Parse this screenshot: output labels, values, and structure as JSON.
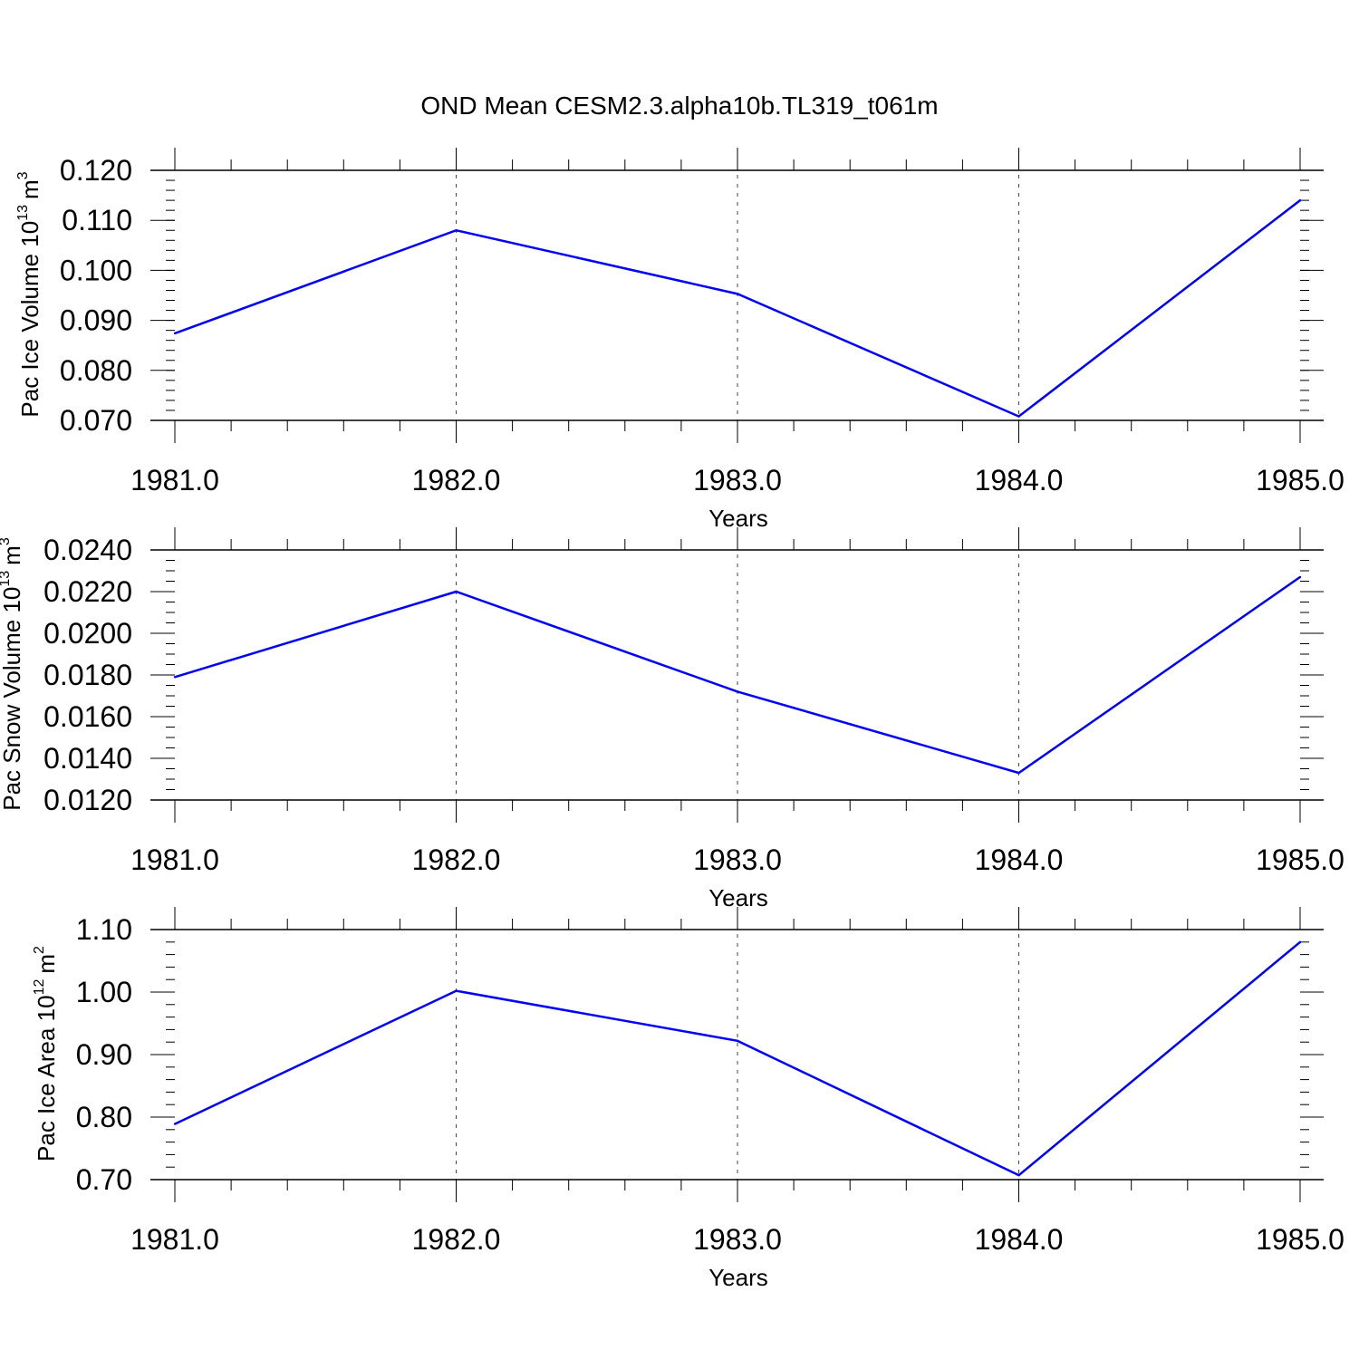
{
  "figure_title": "OND Mean CESM2.3.alpha10b.TL319_t061m",
  "chart_data": [
    {
      "type": "line",
      "title": "",
      "xlabel": "Years",
      "ylabel": "Pac Ice Volume 10",
      "ylabel_exp": "13",
      "ylabel_unit": "m",
      "ylabel_unit_exp": "3",
      "x": [
        1981,
        1982,
        1983,
        1984,
        1985
      ],
      "x_tick_labels": [
        "1981.0",
        "1982.0",
        "1983.0",
        "1984.0",
        "1985.0"
      ],
      "y_ticks": [
        0.07,
        0.08,
        0.09,
        0.1,
        0.11,
        0.12
      ],
      "y_tick_labels": [
        "0.070",
        "0.080",
        "0.090",
        "0.100",
        "0.110",
        "0.120"
      ],
      "xlim": [
        1981,
        1985
      ],
      "ylim": [
        0.07,
        0.12
      ],
      "y_minor_step": 0.002,
      "series": [
        {
          "values": [
            0.0874,
            0.108,
            0.0953,
            0.0708,
            0.114
          ],
          "color": "#0000ff"
        }
      ]
    },
    {
      "type": "line",
      "title": "",
      "xlabel": "Years",
      "ylabel": "Pac Snow Volume 10",
      "ylabel_exp": "13",
      "ylabel_unit": "m",
      "ylabel_unit_exp": "3",
      "x": [
        1981,
        1982,
        1983,
        1984,
        1985
      ],
      "x_tick_labels": [
        "1981.0",
        "1982.0",
        "1983.0",
        "1984.0",
        "1985.0"
      ],
      "y_ticks": [
        0.012,
        0.014,
        0.016,
        0.018,
        0.02,
        0.022,
        0.024
      ],
      "y_tick_labels": [
        "0.0120",
        "0.0140",
        "0.0160",
        "0.0180",
        "0.0200",
        "0.0220",
        "0.0240"
      ],
      "xlim": [
        1981,
        1985
      ],
      "ylim": [
        0.012,
        0.024
      ],
      "y_minor_step": 0.0005,
      "series": [
        {
          "values": [
            0.0179,
            0.022,
            0.0172,
            0.0133,
            0.0227
          ],
          "color": "#0000ff"
        }
      ]
    },
    {
      "type": "line",
      "title": "",
      "xlabel": "Years",
      "ylabel": "Pac Ice Area 10",
      "ylabel_exp": "12",
      "ylabel_unit": "m",
      "ylabel_unit_exp": "2",
      "x": [
        1981,
        1982,
        1983,
        1984,
        1985
      ],
      "x_tick_labels": [
        "1981.0",
        "1982.0",
        "1983.0",
        "1984.0",
        "1985.0"
      ],
      "y_ticks": [
        0.7,
        0.8,
        0.9,
        1.0,
        1.1
      ],
      "y_tick_labels": [
        "0.70",
        "0.80",
        "0.90",
        "1.00",
        "1.10"
      ],
      "xlim": [
        1981,
        1985
      ],
      "ylim": [
        0.7,
        1.1
      ],
      "y_minor_step": 0.02,
      "series": [
        {
          "values": [
            0.789,
            1.002,
            0.922,
            0.707,
            1.08
          ],
          "color": "#0000ff"
        }
      ]
    }
  ]
}
